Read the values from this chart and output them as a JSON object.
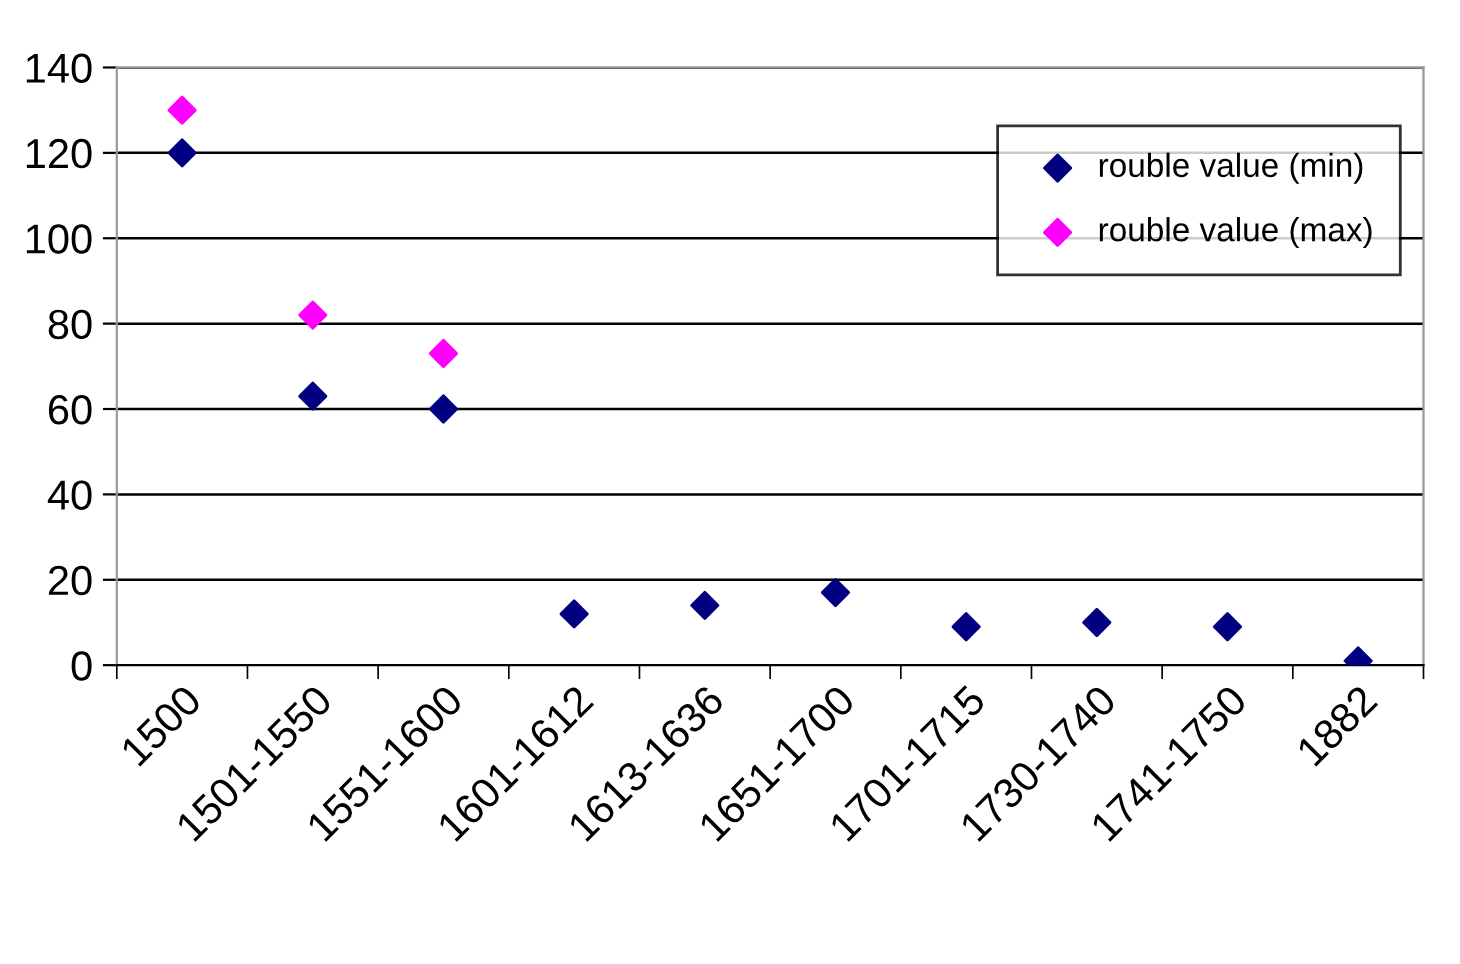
{
  "chart_data": {
    "type": "scatter",
    "categories": [
      "1500",
      "1501-1550",
      "1551-1600",
      "1601-1612",
      "1613-1636",
      "1651-1700",
      "1701-1715",
      "1730-1740",
      "1741-1750",
      "1882"
    ],
    "series": [
      {
        "name": "rouble value (min)",
        "color": "#000080",
        "values": [
          120,
          63,
          60,
          12,
          14,
          17,
          9,
          10,
          9,
          1
        ]
      },
      {
        "name": "rouble value (max)",
        "color": "#ff00ff",
        "values": [
          130,
          82,
          73,
          null,
          null,
          null,
          null,
          null,
          null,
          null
        ]
      }
    ],
    "ylim": [
      0,
      140
    ],
    "yticks": [
      0,
      20,
      40,
      60,
      80,
      100,
      120,
      140
    ],
    "grid": "y",
    "legend": "top right",
    "marker": "diamond"
  }
}
